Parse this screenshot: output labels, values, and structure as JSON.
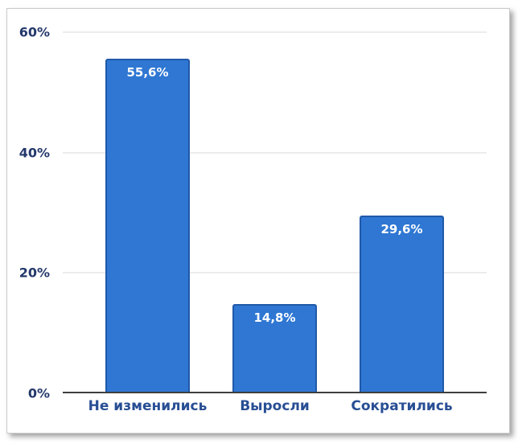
{
  "chart_data": {
    "type": "bar",
    "title": "",
    "xlabel": "",
    "ylabel": "",
    "categories": [
      "Не изменились",
      "Выросли",
      "Сократились"
    ],
    "values": [
      55.6,
      14.8,
      29.6
    ],
    "value_labels": [
      "55,6%",
      "14,8%",
      "29,6%"
    ],
    "ylim": [
      0,
      60
    ],
    "yticks": [
      {
        "value": 0,
        "label": "0%"
      },
      {
        "value": 20,
        "label": "20%"
      },
      {
        "value": 40,
        "label": "40%"
      },
      {
        "value": 60,
        "label": "60%"
      }
    ],
    "grid": true,
    "legend": false
  },
  "colors": {
    "background": "#FFFFFF",
    "frame_border": "#C9C9C9",
    "bar_fill": "#2F77D3",
    "bar_border": "#2059A8",
    "value_label": "#FFFFFF",
    "gridline": "#D9D9D9",
    "axis_line": "#3F3F3F",
    "ytick_text": "#24386B",
    "xtick_text": "#284E94"
  }
}
